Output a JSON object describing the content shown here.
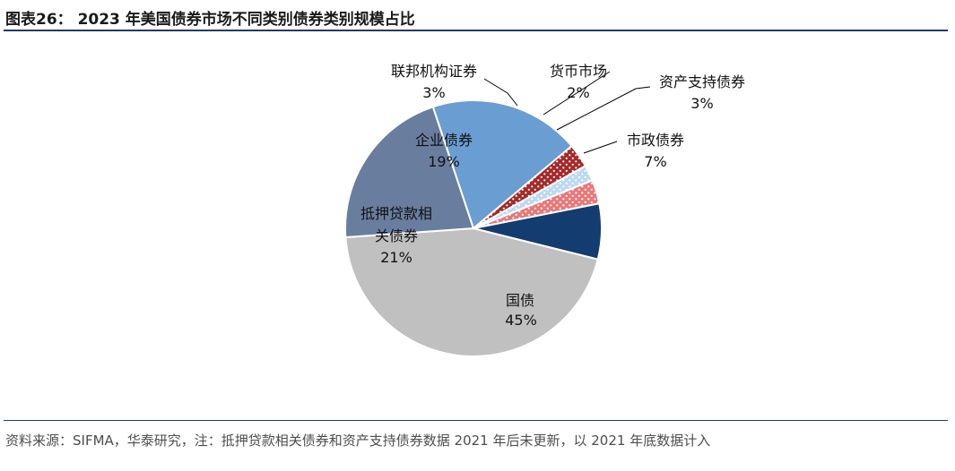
{
  "header": {
    "title": "图表26： 2023 年美国债券市场不同类别债券类别规模占比"
  },
  "footer": {
    "source": "资料来源：SIFMA，华泰研究，注：抵押贷款相关债券和资产支持债券数据 2021 年后未更新，以 2021 年底数据计入"
  },
  "chart_data": {
    "type": "pie",
    "title": "",
    "slices": [
      {
        "label": "国债",
        "value": 45,
        "value_label": "45%",
        "color": "#c0c0c0",
        "pattern": "solid"
      },
      {
        "label": "抵押贷款相关债券",
        "label_lines": [
          "抵押贷款相",
          "关债券"
        ],
        "value": 21,
        "value_label": "21%",
        "color": "#697e9f",
        "pattern": "solid"
      },
      {
        "label": "企业债券",
        "value": 19,
        "value_label": "19%",
        "color": "#6a9dd2",
        "pattern": "solid"
      },
      {
        "label": "联邦机构证券",
        "value": 3,
        "value_label": "3%",
        "color": "#a52a2a",
        "pattern": "dots"
      },
      {
        "label": "货币市场",
        "value": 2,
        "value_label": "2%",
        "color": "#bcd9f2",
        "pattern": "dots"
      },
      {
        "label": "资产支持债券",
        "value": 3,
        "value_label": "3%",
        "color": "#e8797a",
        "pattern": "dots"
      },
      {
        "label": "市政债券",
        "value": 7,
        "value_label": "7%",
        "color": "#133c70",
        "pattern": "solid"
      }
    ]
  }
}
